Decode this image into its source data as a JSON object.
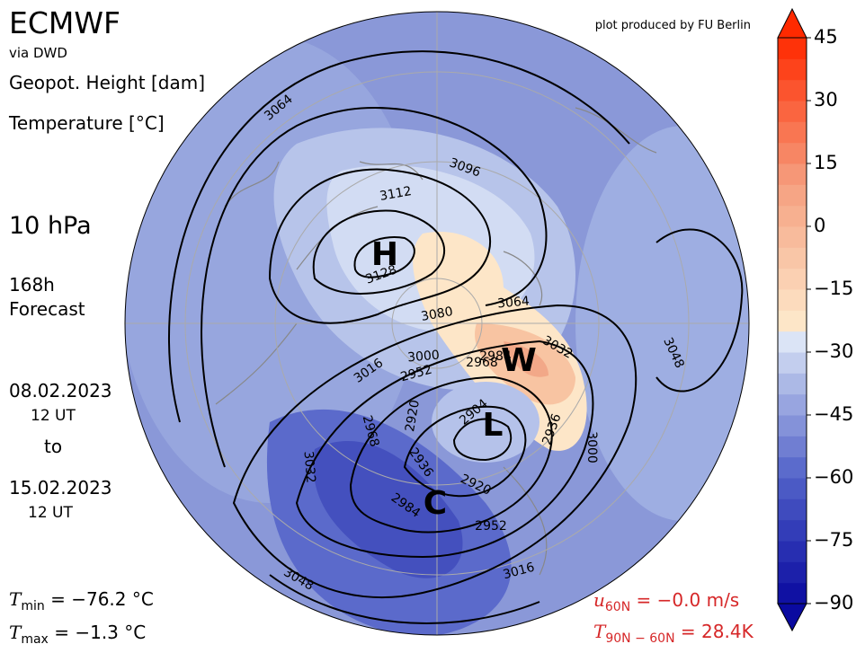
{
  "header": {
    "title": "ECMWF",
    "source": "via DWD",
    "field1": "Geopot. Height [dam]",
    "field2": "Temperature [°C]",
    "level": "10 hPa",
    "lead_time": "168h",
    "lead_label": "Forecast",
    "start_date": "08.02.2023",
    "start_time": "12 UT",
    "to": "to",
    "end_date": "15.02.2023",
    "end_time": "12 UT",
    "credit": "plot produced by FU Berlin"
  },
  "stats": {
    "tmin": {
      "symbol": "T",
      "subscript": "min",
      "text": "= −76.2 °C"
    },
    "tmax": {
      "symbol": "T",
      "subscript": "max",
      "text": "= −1.3 °C"
    },
    "u60": {
      "symbol": "u",
      "subscript": "60N",
      "text": "= −0.0 m/s"
    },
    "t9060": {
      "symbol": "T",
      "subscript": "90N − 60N",
      "text": "= 28.4K"
    }
  },
  "markers": [
    "H",
    "W",
    "L",
    "C"
  ],
  "contour_labels": [
    3064,
    3096,
    3112,
    3128,
    3080,
    3064,
    3032,
    3000,
    2968,
    2984,
    3016,
    2952,
    3048,
    2936,
    3000,
    2904,
    2920,
    2968,
    2936,
    2984,
    2920,
    2952,
    3016,
    3032,
    3048,
    3064
  ],
  "colorbar": {
    "range": [
      -90,
      45
    ],
    "ticks": [
      45,
      30,
      15,
      0,
      {
        "value": -15,
        "label": "−15"
      },
      {
        "value": -30,
        "label": "−30"
      },
      {
        "value": -45,
        "label": "−45"
      },
      {
        "value": -60,
        "label": "−60"
      },
      {
        "value": -75,
        "label": "−75"
      },
      {
        "value": -90,
        "label": "−90"
      }
    ]
  }
}
